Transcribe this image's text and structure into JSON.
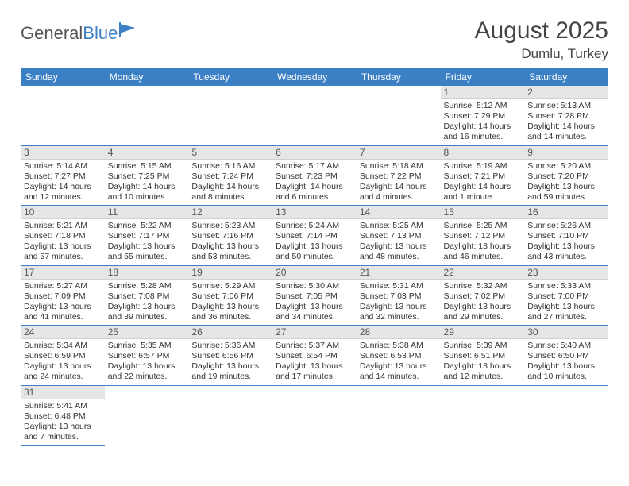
{
  "brand": {
    "part1": "General",
    "part2": "Blue"
  },
  "title": "August 2025",
  "location": "Dumlu, Turkey",
  "colors": {
    "accent": "#3b7fc4",
    "header_text": "#ffffff",
    "daynum_bg": "#e6e6e6"
  },
  "weekdays": [
    "Sunday",
    "Monday",
    "Tuesday",
    "Wednesday",
    "Thursday",
    "Friday",
    "Saturday"
  ],
  "weeks": [
    [
      null,
      null,
      null,
      null,
      null,
      {
        "n": "1",
        "sr": "Sunrise: 5:12 AM",
        "ss": "Sunset: 7:29 PM",
        "d1": "Daylight: 14 hours",
        "d2": "and 16 minutes."
      },
      {
        "n": "2",
        "sr": "Sunrise: 5:13 AM",
        "ss": "Sunset: 7:28 PM",
        "d1": "Daylight: 14 hours",
        "d2": "and 14 minutes."
      }
    ],
    [
      {
        "n": "3",
        "sr": "Sunrise: 5:14 AM",
        "ss": "Sunset: 7:27 PM",
        "d1": "Daylight: 14 hours",
        "d2": "and 12 minutes."
      },
      {
        "n": "4",
        "sr": "Sunrise: 5:15 AM",
        "ss": "Sunset: 7:25 PM",
        "d1": "Daylight: 14 hours",
        "d2": "and 10 minutes."
      },
      {
        "n": "5",
        "sr": "Sunrise: 5:16 AM",
        "ss": "Sunset: 7:24 PM",
        "d1": "Daylight: 14 hours",
        "d2": "and 8 minutes."
      },
      {
        "n": "6",
        "sr": "Sunrise: 5:17 AM",
        "ss": "Sunset: 7:23 PM",
        "d1": "Daylight: 14 hours",
        "d2": "and 6 minutes."
      },
      {
        "n": "7",
        "sr": "Sunrise: 5:18 AM",
        "ss": "Sunset: 7:22 PM",
        "d1": "Daylight: 14 hours",
        "d2": "and 4 minutes."
      },
      {
        "n": "8",
        "sr": "Sunrise: 5:19 AM",
        "ss": "Sunset: 7:21 PM",
        "d1": "Daylight: 14 hours",
        "d2": "and 1 minute."
      },
      {
        "n": "9",
        "sr": "Sunrise: 5:20 AM",
        "ss": "Sunset: 7:20 PM",
        "d1": "Daylight: 13 hours",
        "d2": "and 59 minutes."
      }
    ],
    [
      {
        "n": "10",
        "sr": "Sunrise: 5:21 AM",
        "ss": "Sunset: 7:18 PM",
        "d1": "Daylight: 13 hours",
        "d2": "and 57 minutes."
      },
      {
        "n": "11",
        "sr": "Sunrise: 5:22 AM",
        "ss": "Sunset: 7:17 PM",
        "d1": "Daylight: 13 hours",
        "d2": "and 55 minutes."
      },
      {
        "n": "12",
        "sr": "Sunrise: 5:23 AM",
        "ss": "Sunset: 7:16 PM",
        "d1": "Daylight: 13 hours",
        "d2": "and 53 minutes."
      },
      {
        "n": "13",
        "sr": "Sunrise: 5:24 AM",
        "ss": "Sunset: 7:14 PM",
        "d1": "Daylight: 13 hours",
        "d2": "and 50 minutes."
      },
      {
        "n": "14",
        "sr": "Sunrise: 5:25 AM",
        "ss": "Sunset: 7:13 PM",
        "d1": "Daylight: 13 hours",
        "d2": "and 48 minutes."
      },
      {
        "n": "15",
        "sr": "Sunrise: 5:25 AM",
        "ss": "Sunset: 7:12 PM",
        "d1": "Daylight: 13 hours",
        "d2": "and 46 minutes."
      },
      {
        "n": "16",
        "sr": "Sunrise: 5:26 AM",
        "ss": "Sunset: 7:10 PM",
        "d1": "Daylight: 13 hours",
        "d2": "and 43 minutes."
      }
    ],
    [
      {
        "n": "17",
        "sr": "Sunrise: 5:27 AM",
        "ss": "Sunset: 7:09 PM",
        "d1": "Daylight: 13 hours",
        "d2": "and 41 minutes."
      },
      {
        "n": "18",
        "sr": "Sunrise: 5:28 AM",
        "ss": "Sunset: 7:08 PM",
        "d1": "Daylight: 13 hours",
        "d2": "and 39 minutes."
      },
      {
        "n": "19",
        "sr": "Sunrise: 5:29 AM",
        "ss": "Sunset: 7:06 PM",
        "d1": "Daylight: 13 hours",
        "d2": "and 36 minutes."
      },
      {
        "n": "20",
        "sr": "Sunrise: 5:30 AM",
        "ss": "Sunset: 7:05 PM",
        "d1": "Daylight: 13 hours",
        "d2": "and 34 minutes."
      },
      {
        "n": "21",
        "sr": "Sunrise: 5:31 AM",
        "ss": "Sunset: 7:03 PM",
        "d1": "Daylight: 13 hours",
        "d2": "and 32 minutes."
      },
      {
        "n": "22",
        "sr": "Sunrise: 5:32 AM",
        "ss": "Sunset: 7:02 PM",
        "d1": "Daylight: 13 hours",
        "d2": "and 29 minutes."
      },
      {
        "n": "23",
        "sr": "Sunrise: 5:33 AM",
        "ss": "Sunset: 7:00 PM",
        "d1": "Daylight: 13 hours",
        "d2": "and 27 minutes."
      }
    ],
    [
      {
        "n": "24",
        "sr": "Sunrise: 5:34 AM",
        "ss": "Sunset: 6:59 PM",
        "d1": "Daylight: 13 hours",
        "d2": "and 24 minutes."
      },
      {
        "n": "25",
        "sr": "Sunrise: 5:35 AM",
        "ss": "Sunset: 6:57 PM",
        "d1": "Daylight: 13 hours",
        "d2": "and 22 minutes."
      },
      {
        "n": "26",
        "sr": "Sunrise: 5:36 AM",
        "ss": "Sunset: 6:56 PM",
        "d1": "Daylight: 13 hours",
        "d2": "and 19 minutes."
      },
      {
        "n": "27",
        "sr": "Sunrise: 5:37 AM",
        "ss": "Sunset: 6:54 PM",
        "d1": "Daylight: 13 hours",
        "d2": "and 17 minutes."
      },
      {
        "n": "28",
        "sr": "Sunrise: 5:38 AM",
        "ss": "Sunset: 6:53 PM",
        "d1": "Daylight: 13 hours",
        "d2": "and 14 minutes."
      },
      {
        "n": "29",
        "sr": "Sunrise: 5:39 AM",
        "ss": "Sunset: 6:51 PM",
        "d1": "Daylight: 13 hours",
        "d2": "and 12 minutes."
      },
      {
        "n": "30",
        "sr": "Sunrise: 5:40 AM",
        "ss": "Sunset: 6:50 PM",
        "d1": "Daylight: 13 hours",
        "d2": "and 10 minutes."
      }
    ],
    [
      {
        "n": "31",
        "sr": "Sunrise: 5:41 AM",
        "ss": "Sunset: 6:48 PM",
        "d1": "Daylight: 13 hours",
        "d2": "and 7 minutes."
      },
      null,
      null,
      null,
      null,
      null,
      null
    ]
  ]
}
